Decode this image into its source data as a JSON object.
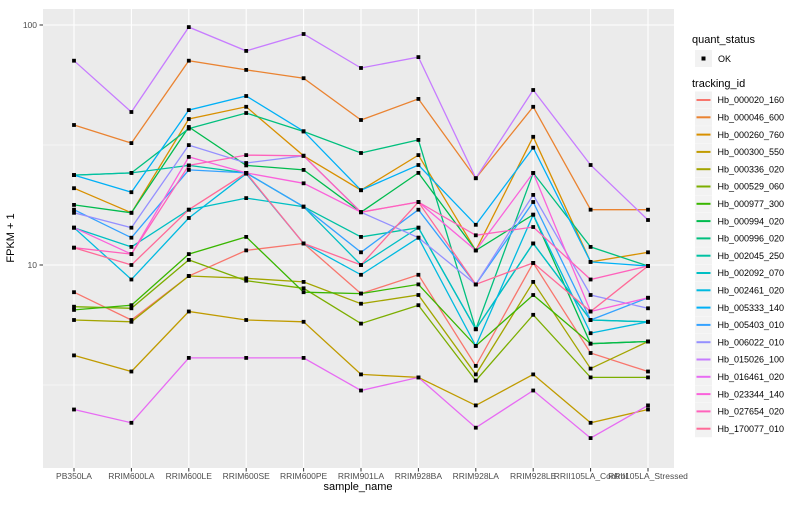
{
  "figure": {
    "background": "#FFFFFF",
    "panel_background": "#EBEBEB",
    "gridline_color": "#FFFFFF",
    "axis_text_color": "#4D4D4D",
    "legend_key_background": "#F2F2F2",
    "point_color": "#000000"
  },
  "legend": {
    "quant_status_title": "quant_status",
    "quant_status_items": [
      {
        "label": "OK",
        "symbol": "black-point"
      }
    ],
    "tracking_id_title": "tracking_id"
  },
  "chart_data": {
    "type": "line",
    "title": "",
    "xlabel": "sample_name",
    "ylabel": "FPKM + 1",
    "y_scale": "log10",
    "ylim": [
      1.4,
      115
    ],
    "grid": true,
    "legend_position": "right",
    "y_ticks": [
      {
        "label": "100",
        "value": 100
      },
      {
        "label": "10",
        "value": 10
      }
    ],
    "categories": [
      "PB350LA",
      "RRIM600LA",
      "RRIM600LE",
      "RRIM600SE",
      "RRIM600PE",
      "RRIM901LA",
      "RRIM928BA",
      "RRIM928LA",
      "RRIM928LE",
      "RRII105LA_Control",
      "RRII105LA_Stressed"
    ],
    "series": [
      {
        "name": "Hb_000020_160",
        "color": "#F8766D",
        "values": [
          7.7,
          5.9,
          9.0,
          11.5,
          12.3,
          7.6,
          9.1,
          3.8,
          10.2,
          4.3,
          3.6
        ]
      },
      {
        "name": "Hb_000046_600",
        "color": "#EA8331",
        "values": [
          38.3,
          32.2,
          71.0,
          65.0,
          60.0,
          40.2,
          49.2,
          23.0,
          45.6,
          17.0,
          17.0
        ]
      },
      {
        "name": "Hb_000260_760",
        "color": "#D89000",
        "values": [
          20.9,
          16.5,
          40.6,
          45.6,
          28.5,
          20.5,
          28.7,
          11.5,
          34.2,
          10.3,
          11.3
        ]
      },
      {
        "name": "Hb_000300_550",
        "color": "#C09B00",
        "values": [
          4.2,
          3.6,
          6.4,
          5.9,
          5.8,
          3.5,
          3.4,
          2.6,
          3.5,
          2.2,
          2.5
        ]
      },
      {
        "name": "Hb_000336_020",
        "color": "#A3A500",
        "values": [
          5.9,
          5.8,
          9.0,
          8.8,
          8.5,
          6.9,
          7.5,
          3.5,
          8.5,
          3.7,
          4.8
        ]
      },
      {
        "name": "Hb_000529_060",
        "color": "#7CAE00",
        "values": [
          6.7,
          6.6,
          10.5,
          8.6,
          8.0,
          5.7,
          6.8,
          3.3,
          6.2,
          3.4,
          3.4
        ]
      },
      {
        "name": "Hb_000977_300",
        "color": "#39B600",
        "values": [
          6.5,
          6.8,
          11.1,
          13.1,
          7.7,
          7.6,
          8.3,
          4.6,
          7.5,
          4.7,
          4.8
        ]
      },
      {
        "name": "Hb_000994_020",
        "color": "#00BB4E",
        "values": [
          17.8,
          16.5,
          37.6,
          26.0,
          24.9,
          16.6,
          24.2,
          11.5,
          16.2,
          4.7,
          4.8
        ]
      },
      {
        "name": "Hb_000996_020",
        "color": "#00BF7D",
        "values": [
          23.7,
          24.2,
          37.0,
          43.0,
          36.0,
          29.3,
          33.2,
          5.4,
          24.2,
          11.9,
          9.9
        ]
      },
      {
        "name": "Hb_002045_250",
        "color": "#00C1A3",
        "values": [
          23.7,
          24.2,
          26.0,
          24.2,
          17.5,
          13.1,
          14.3,
          5.4,
          12.3,
          5.9,
          5.8
        ]
      },
      {
        "name": "Hb_002092_070",
        "color": "#00BFC4",
        "values": [
          14.3,
          11.9,
          17.0,
          19.0,
          17.5,
          10.0,
          14.3,
          5.4,
          12.3,
          5.9,
          5.8
        ]
      },
      {
        "name": "Hb_002461_020",
        "color": "#00BAE0",
        "values": [
          14.3,
          8.7,
          15.7,
          24.0,
          12.3,
          9.1,
          13.0,
          4.6,
          16.2,
          5.2,
          5.8
        ]
      },
      {
        "name": "Hb_005333_140",
        "color": "#00B0F6",
        "values": [
          23.7,
          20.1,
          44.2,
          50.6,
          36.1,
          20.5,
          26.1,
          14.7,
          30.8,
          10.3,
          9.9
        ]
      },
      {
        "name": "Hb_005403_010",
        "color": "#35A2FF",
        "values": [
          17.0,
          13.0,
          24.9,
          24.2,
          17.5,
          11.3,
          17.0,
          8.3,
          18.3,
          5.9,
          7.3
        ]
      },
      {
        "name": "Hb_006022_010",
        "color": "#9590FF",
        "values": [
          16.5,
          14.3,
          31.6,
          26.6,
          28.5,
          16.6,
          13.0,
          8.3,
          19.6,
          7.5,
          6.6
        ]
      },
      {
        "name": "Hb_015026_100",
        "color": "#C77CFF",
        "values": [
          71.0,
          43.4,
          98.0,
          78.0,
          91.7,
          66.2,
          73.5,
          23.0,
          53.6,
          26.1,
          15.4
        ]
      },
      {
        "name": "Hb_016461_020",
        "color": "#E76BF3",
        "values": [
          2.5,
          2.2,
          4.1,
          4.1,
          4.1,
          3.0,
          3.4,
          2.1,
          3.0,
          1.9,
          2.6
        ]
      },
      {
        "name": "Hb_023344_140",
        "color": "#FA62DB",
        "values": [
          14.3,
          11.1,
          28.2,
          24.2,
          21.9,
          16.6,
          18.3,
          11.5,
          24.2,
          6.4,
          7.3
        ]
      },
      {
        "name": "Hb_027654_020",
        "color": "#FF62BC",
        "values": [
          11.8,
          11.1,
          26.0,
          28.7,
          28.5,
          16.6,
          18.3,
          13.3,
          14.4,
          8.7,
          9.9
        ]
      },
      {
        "name": "Hb_170077_010",
        "color": "#FF6A98",
        "values": [
          11.8,
          10.0,
          17.0,
          24.2,
          12.3,
          10.0,
          18.3,
          8.3,
          10.2,
          6.4,
          9.9
        ]
      }
    ]
  }
}
